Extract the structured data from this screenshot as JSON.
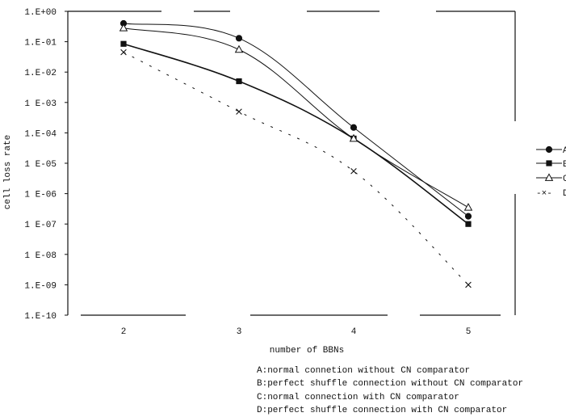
{
  "chart_data": {
    "type": "line",
    "title": "",
    "xlabel": "number of BBNs",
    "ylabel": "cell loss rate",
    "y_scale": "log",
    "ylim": [
      1e-10,
      1
    ],
    "y_tick_values": [
      1,
      0.1,
      0.01,
      0.001,
      0.0001,
      1e-05,
      1e-06,
      1e-07,
      1e-08,
      1e-09,
      1e-10
    ],
    "y_tick_labels": [
      "1.E+00",
      "1.E-01",
      "1.E-02",
      "1 E-03",
      "1.E-04",
      "1 E-05",
      "1 E-06",
      "1 E-07",
      "1 E-08",
      "1.E-09",
      "1.E-10"
    ],
    "x": [
      2,
      3,
      4,
      5
    ],
    "x_tick_labels": [
      "2",
      "3",
      "4",
      "5"
    ],
    "xlim": [
      1.5,
      5.5
    ],
    "legend_placement": "right",
    "grid": false,
    "series": [
      {
        "name": "A",
        "marker": "circle-filled",
        "line": "solid",
        "values": [
          0.4,
          0.13,
          0.00015,
          1.8e-07
        ]
      },
      {
        "name": "B",
        "marker": "square-filled",
        "line": "solid",
        "values": [
          0.085,
          0.005,
          6.5e-05,
          1e-07
        ]
      },
      {
        "name": "C",
        "marker": "triangle-open",
        "line": "solid",
        "values": [
          0.28,
          0.055,
          6.5e-05,
          3.5e-07
        ]
      },
      {
        "name": "D",
        "marker": "x",
        "line": "dashed",
        "values": [
          0.045,
          0.0005,
          5.5e-06,
          1e-09
        ]
      }
    ],
    "legend_marker_text": {
      "D": "-×-"
    },
    "notes": [
      "A:normal connetion without CN comparator",
      "B:perfect shuffle connection without CN comparator",
      "C:normal connection with CN comparator",
      "D:perfect shuffle connection with  CN comparator"
    ]
  }
}
